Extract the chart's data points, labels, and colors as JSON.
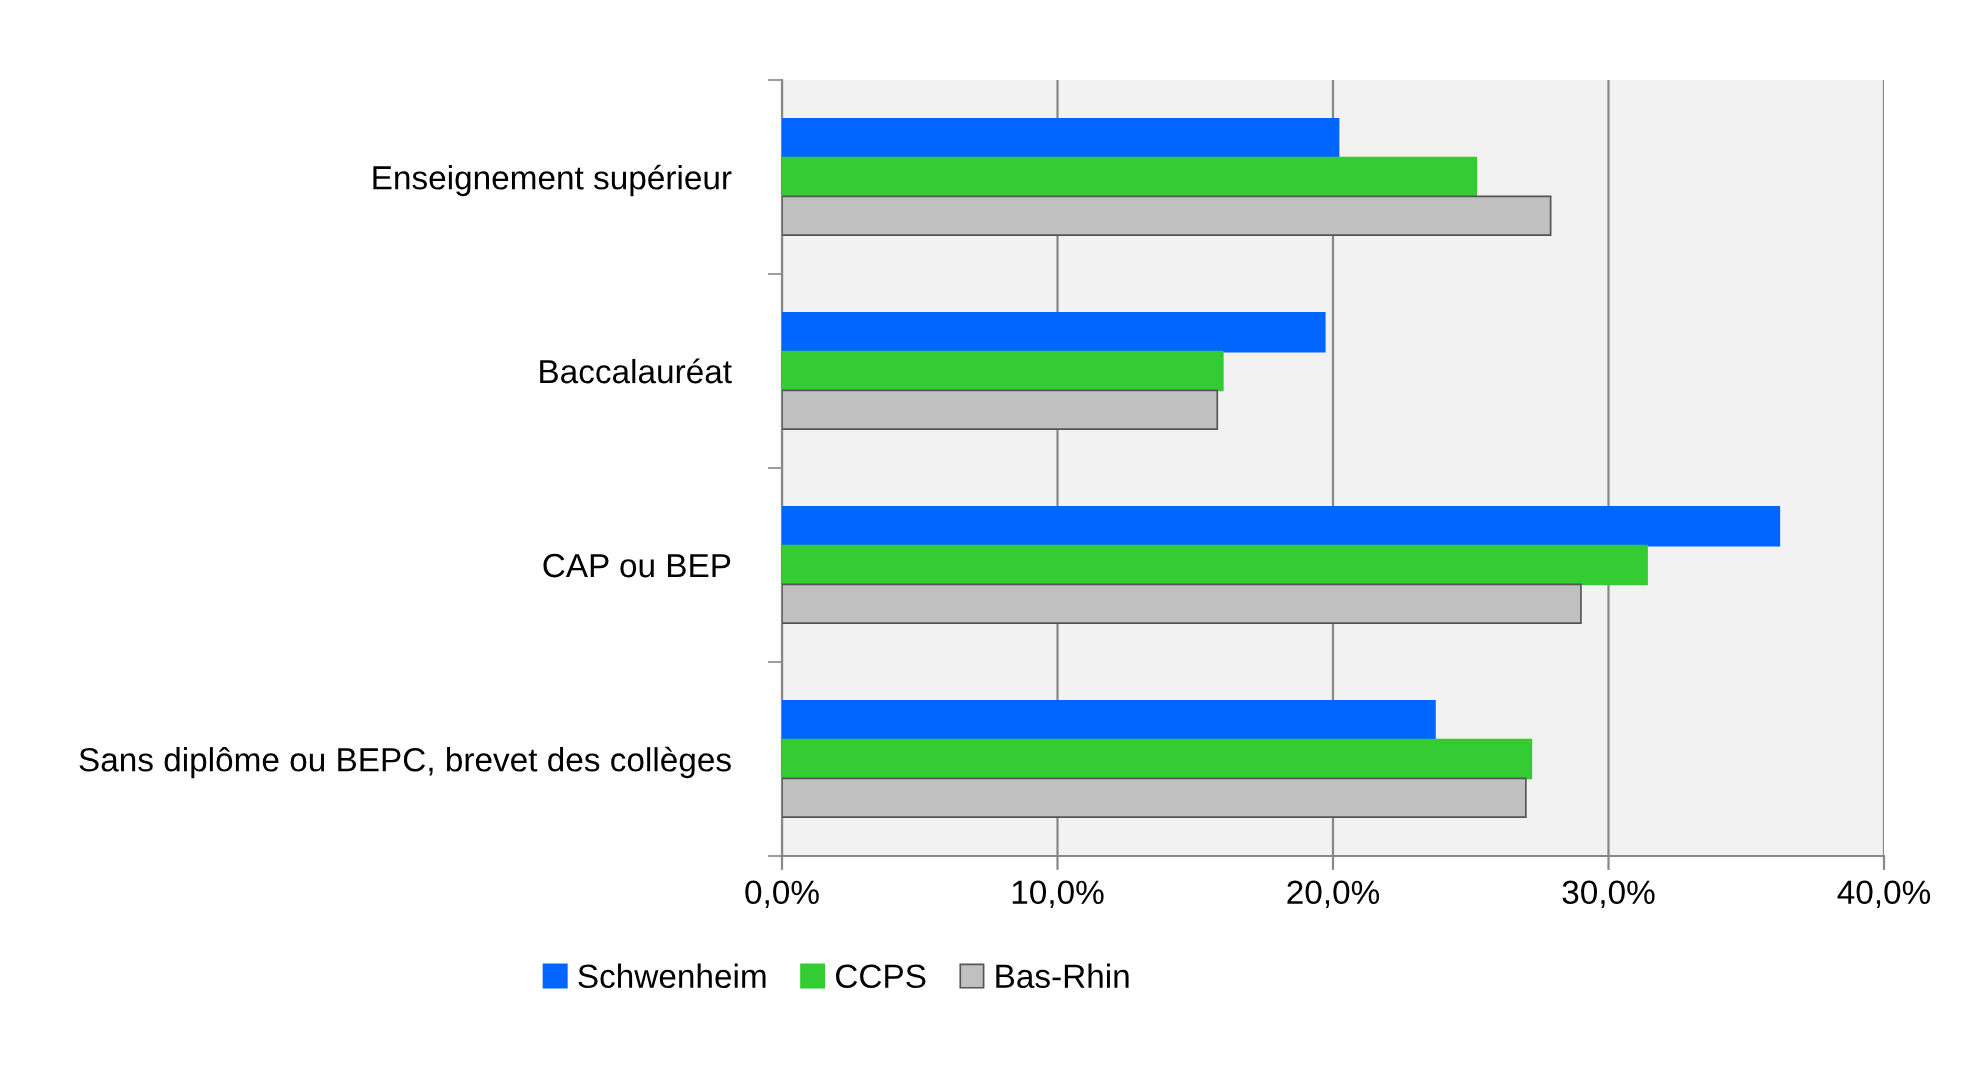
{
  "chart_data": {
    "type": "bar",
    "orientation": "horizontal",
    "categories": [
      "Enseignement supérieur",
      "Baccalauréat",
      "CAP ou BEP",
      "Sans diplôme ou BEPC, brevet des collèges"
    ],
    "series": [
      {
        "name": "Schwenheim",
        "color": "#0066ff",
        "values": [
          20.2,
          19.7,
          36.2,
          23.7
        ]
      },
      {
        "name": "CCPS",
        "color": "#33cc33",
        "values": [
          25.2,
          16.0,
          31.4,
          27.2
        ]
      },
      {
        "name": "Bas-Rhin",
        "color": "#c0c0c0",
        "values": [
          27.9,
          15.8,
          29.0,
          27.0
        ]
      }
    ],
    "xlim": [
      0,
      40
    ],
    "xticks": [
      {
        "value": 0,
        "label": "0,0%"
      },
      {
        "value": 10,
        "label": "10,0%"
      },
      {
        "value": 20,
        "label": "20,0%"
      },
      {
        "value": 30,
        "label": "30,0%"
      },
      {
        "value": 40,
        "label": "40,0%"
      }
    ],
    "grid": "x",
    "legend": "bottom"
  }
}
